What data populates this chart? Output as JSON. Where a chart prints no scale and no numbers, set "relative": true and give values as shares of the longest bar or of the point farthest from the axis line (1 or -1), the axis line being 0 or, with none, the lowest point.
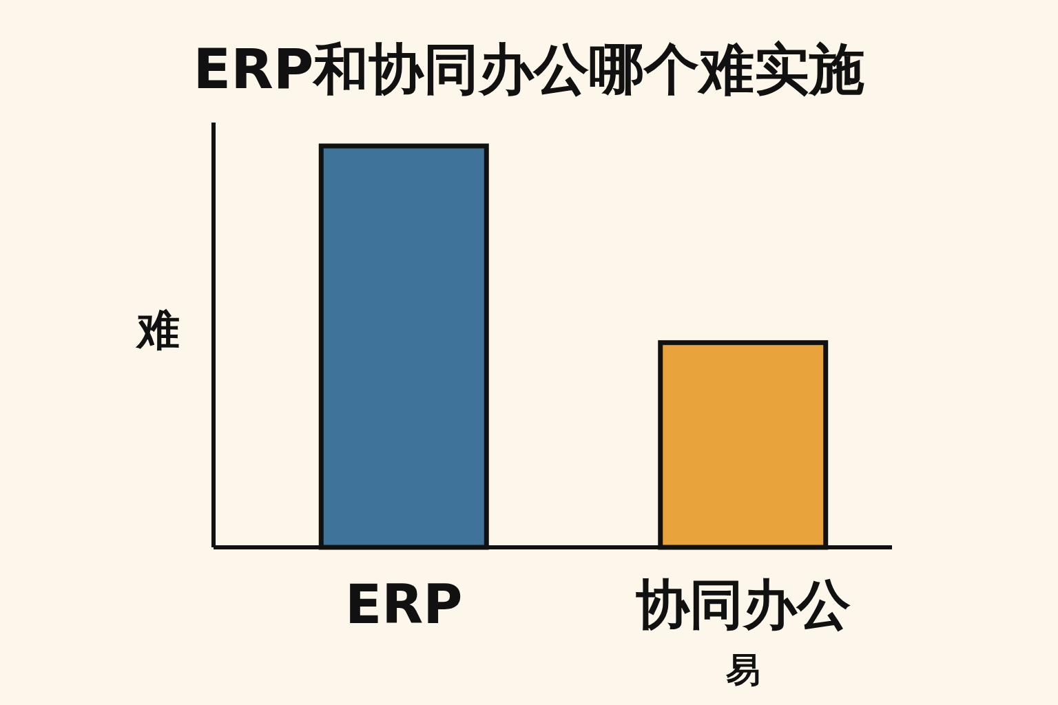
{
  "chart_data": {
    "type": "bar",
    "title": "ERP和协同办公哪个难实施",
    "ylabel": "难",
    "xlabel": "易",
    "categories": [
      "ERP",
      "协同办公"
    ],
    "values": [
      1,
      0.51
    ],
    "colors": [
      "#3f7399",
      "#e8a33d"
    ],
    "relative": true
  }
}
